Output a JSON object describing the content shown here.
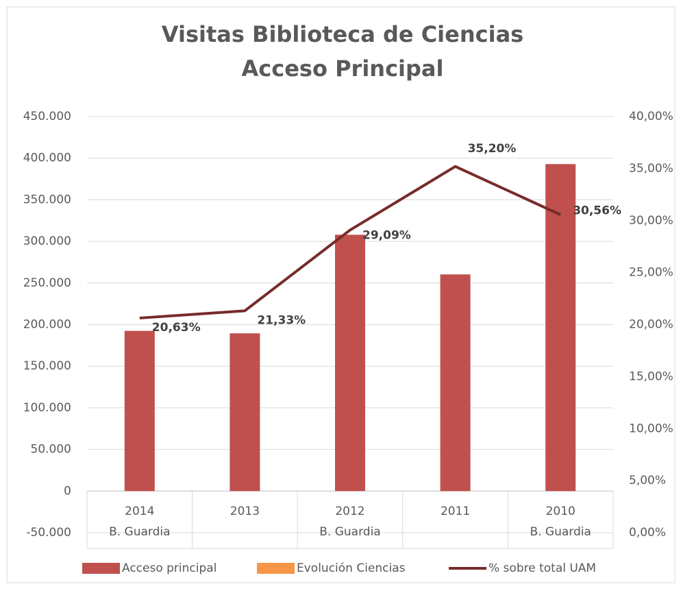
{
  "chart_data": {
    "type": "bar_line",
    "title": "Visitas Biblioteca de Ciencias",
    "subtitle": "Acceso Principal",
    "categories": [
      [
        "2014",
        "B. Guardia"
      ],
      [
        "2013"
      ],
      [
        "2012",
        "B. Guardia"
      ],
      [
        "2011"
      ],
      [
        "2010",
        "B. Guardia"
      ]
    ],
    "series": [
      {
        "name": "Acceso principal",
        "type": "bar",
        "color": "#c0504d",
        "values": [
          192500,
          189500,
          308000,
          260300,
          392900
        ]
      },
      {
        "name": "Evolución Ciencias",
        "type": "bar",
        "color": "#f79646",
        "values": [
          null,
          null,
          null,
          null,
          null
        ]
      },
      {
        "name": "% sobre total UAM",
        "type": "line",
        "axis": "y2",
        "color": "#772c2a",
        "values": [
          20.63,
          21.33,
          29.09,
          35.2,
          30.56
        ],
        "value_labels": [
          "20,63%",
          "21,33%",
          "29,09%",
          "35,20%",
          "30,56%"
        ]
      }
    ],
    "ylim": [
      -50000,
      450000
    ],
    "yticks": [
      {
        "value": -50000,
        "label": "-50.000"
      },
      0,
      {
        "value": 50000,
        "label": "50.000"
      },
      {
        "value": 100000,
        "label": "100.000"
      },
      {
        "value": 150000,
        "label": "150.000"
      },
      {
        "value": 200000,
        "label": "200.000"
      },
      {
        "value": 250000,
        "label": "250.000"
      },
      {
        "value": 300000,
        "label": "300.000"
      },
      {
        "value": 350000,
        "label": "350.000"
      },
      {
        "value": 400000,
        "label": "400.000"
      },
      {
        "value": 450000,
        "label": "450.000"
      }
    ],
    "y2lim": [
      0,
      40
    ],
    "y2ticks": [
      {
        "value": 0,
        "label": "0,00%"
      },
      {
        "value": 5,
        "label": "5,00%"
      },
      {
        "value": 10,
        "label": "10,00%"
      },
      {
        "value": 15,
        "label": "15,00%"
      },
      {
        "value": 20,
        "label": "20,00%"
      },
      {
        "value": 25,
        "label": "25,00%"
      },
      {
        "value": 30,
        "label": "30,00%"
      },
      {
        "value": 35,
        "label": "35,00%"
      },
      {
        "value": 40,
        "label": "40,00%"
      }
    ],
    "grid": true,
    "legend": "bottom"
  }
}
